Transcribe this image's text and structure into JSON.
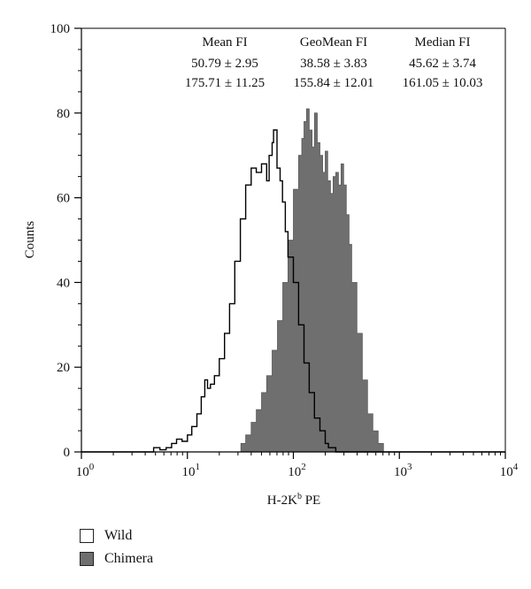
{
  "chart_data": {
    "type": "area",
    "xlabel": "H-2K",
    "xlabel_sup": "b",
    "xlabel_suffix": " PE",
    "ylabel": "Counts",
    "x_scale": "log",
    "xlim": [
      1,
      10000
    ],
    "ylim": [
      0,
      100
    ],
    "x_ticks": [
      {
        "base": "10",
        "exp": "0"
      },
      {
        "base": "10",
        "exp": "1"
      },
      {
        "base": "10",
        "exp": "2"
      },
      {
        "base": "10",
        "exp": "3"
      },
      {
        "base": "10",
        "exp": "4"
      }
    ],
    "y_ticks": [
      "0",
      "20",
      "40",
      "60",
      "80",
      "100"
    ],
    "stats_table": {
      "columns": [
        {
          "header": "Mean FI",
          "rows": [
            "50.79 ± 2.95",
            "175.71 ± 11.25"
          ]
        },
        {
          "header": "GeoMean FI",
          "rows": [
            "38.58 ± 3.83",
            "155.84 ± 12.01"
          ]
        },
        {
          "header": "Median FI",
          "rows": [
            "45.62 ± 3.74",
            "161.05 ± 10.03"
          ]
        }
      ]
    },
    "series": [
      {
        "name": "Wild",
        "style": "outline",
        "fill": "#ffffff",
        "stroke": "#000000",
        "x": [
          1,
          4.3,
          4.8,
          5.5,
          6.3,
          7.1,
          7.9,
          8.9,
          10,
          11,
          12.3,
          13.5,
          14.6,
          15.5,
          16.5,
          18,
          20,
          22.4,
          25,
          28,
          31.6,
          35.5,
          40,
          44.7,
          50,
          56,
          59,
          63,
          65,
          70,
          75,
          79,
          84,
          89,
          100,
          112,
          126,
          141,
          158,
          178,
          200,
          214,
          251,
          1000,
          10000
        ],
        "y": [
          0,
          0,
          1,
          0.5,
          1,
          2,
          3,
          2.5,
          4,
          6,
          9,
          13,
          17,
          15,
          16,
          18,
          22,
          28,
          35,
          45,
          55,
          63,
          67,
          66,
          68,
          64,
          70,
          73,
          76,
          67,
          64,
          59,
          52,
          46,
          40,
          30,
          21,
          14,
          8,
          5,
          2,
          1,
          0,
          0,
          0
        ]
      },
      {
        "name": "Chimera",
        "style": "filled",
        "fill": "#6f6f6f",
        "stroke": "#5a5a5a",
        "x": [
          1,
          30,
          32,
          35.5,
          40,
          44.7,
          50,
          56,
          63,
          70.8,
          79.4,
          89,
          100,
          112,
          120,
          126,
          133,
          141,
          150,
          158,
          168,
          178,
          189,
          200,
          211,
          224,
          237,
          251,
          266,
          282,
          298,
          316,
          335,
          355,
          398,
          447,
          501,
          562,
          631,
          708,
          10000
        ],
        "y": [
          0,
          0,
          2,
          4,
          7,
          10,
          14,
          18,
          24,
          31,
          40,
          50,
          62,
          70,
          74,
          78,
          81,
          76,
          72,
          80,
          73,
          70,
          66,
          71,
          64,
          61,
          65,
          66,
          63,
          68,
          63,
          56,
          49,
          40,
          28,
          17,
          9,
          5,
          2,
          0,
          0
        ]
      }
    ],
    "legend": [
      {
        "label": "Wild",
        "color": "#ffffff"
      },
      {
        "label": "Chimera",
        "color": "#6f6f6f"
      }
    ]
  }
}
